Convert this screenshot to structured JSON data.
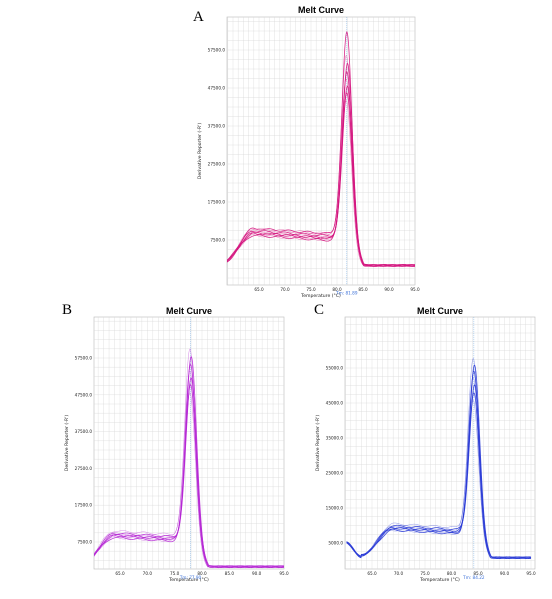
{
  "chart_data": [
    {
      "id": "A",
      "panel_label": "A",
      "type": "line",
      "title": "Melt Curve",
      "xlabel": "Temperature (°C)",
      "ylabel": "Derivative Reporter (-R')",
      "xlim": [
        55,
        95
      ],
      "ylim": [
        0,
        60000
      ],
      "xticks": [
        "65.0",
        "70.0",
        "75.0",
        "80.0",
        "85.0",
        "90.0",
        "95.0"
      ],
      "yticks": [
        "7500.0",
        "17500.0",
        "27500.0",
        "37500.0",
        "47500.0",
        "57500.0"
      ],
      "tm_label": "Tm: 81.89",
      "tm": 81.89,
      "grid": true,
      "color": "#d4147e",
      "peaks": [
        44000,
        46000,
        48000,
        50000,
        52000,
        54000,
        56000,
        62000
      ]
    },
    {
      "id": "B",
      "panel_label": "B",
      "type": "line",
      "title": "Melt Curve",
      "xlabel": "Temperature (°C)",
      "ylabel": "Derivative Reporter (-R')",
      "xlim": [
        55,
        95
      ],
      "ylim": [
        0,
        60000
      ],
      "xticks": [
        "65.0",
        "70.0",
        "75.0",
        "80.0",
        "85.0",
        "90.0",
        "95.0"
      ],
      "yticks": [
        "7500.0",
        "17500.0",
        "27500.0",
        "37500.0",
        "47500.0",
        "57500.0"
      ],
      "tm_label": "Tm: 77.90",
      "tm": 77.9,
      "grid": true,
      "color": "#b526d4",
      "peaks": [
        48000,
        50000,
        52000,
        54000,
        56000,
        58000,
        60000
      ]
    },
    {
      "id": "C",
      "panel_label": "C",
      "type": "line",
      "title": "Melt Curve",
      "xlabel": "Temperature (°C)",
      "ylabel": "Derivative Reporter (-R')",
      "xlim": [
        60,
        95
      ],
      "ylim": [
        0,
        60000
      ],
      "xticks": [
        "65.0",
        "70.0",
        "75.0",
        "80.0",
        "85.0",
        "90.0",
        "95.0"
      ],
      "yticks": [
        "5000.0",
        "15000.0",
        "25000.0",
        "35000.0",
        "45000.0",
        "55000.0"
      ],
      "tm_label": "Tm: 84.22",
      "tm": 84.22,
      "grid": true,
      "color": "#2a3bd6",
      "peaks": [
        46000,
        48000,
        50000,
        52000,
        54000,
        56000,
        58000
      ]
    }
  ]
}
